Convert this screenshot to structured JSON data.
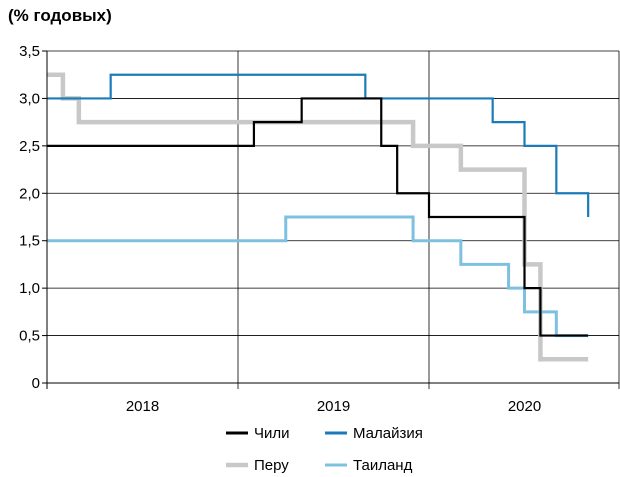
{
  "chart_data": {
    "type": "line",
    "step": true,
    "y_unit_label": "(% годовых)",
    "ylim": [
      0,
      3.5
    ],
    "y_ticks": [
      0,
      0.5,
      1.0,
      1.5,
      2.0,
      2.5,
      3.0,
      3.5
    ],
    "y_tick_labels": [
      "0",
      "0,5",
      "1,0",
      "1,5",
      "2,0",
      "2,5",
      "3,0",
      "3,5"
    ],
    "xlim": [
      "2017-09",
      "2020-09"
    ],
    "x_tick_labels": [
      "2018",
      "2019",
      "2020"
    ],
    "x_boundaries": [
      "2018-09",
      "2019-09"
    ],
    "grid": true,
    "legend_position": "bottom",
    "series": [
      {
        "name": "Чили",
        "color": "#000000",
        "points": [
          [
            "2017-09",
            2.5
          ],
          [
            "2018-10",
            2.75
          ],
          [
            "2019-01",
            3.0
          ],
          [
            "2019-06",
            2.5
          ],
          [
            "2019-07",
            2.0
          ],
          [
            "2019-09",
            1.75
          ],
          [
            "2020-03",
            1.0
          ],
          [
            "2020-04",
            0.5
          ],
          [
            "2020-07",
            0.5
          ]
        ]
      },
      {
        "name": "Перу",
        "color": "#c8c8c8",
        "points": [
          [
            "2017-09",
            3.25
          ],
          [
            "2017-10",
            3.0
          ],
          [
            "2017-11",
            2.75
          ],
          [
            "2019-08",
            2.5
          ],
          [
            "2019-11",
            2.25
          ],
          [
            "2020-03",
            1.25
          ],
          [
            "2020-04",
            0.25
          ],
          [
            "2020-07",
            0.25
          ]
        ]
      },
      {
        "name": "Малайзия",
        "color": "#1a7bb8",
        "points": [
          [
            "2017-09",
            3.0
          ],
          [
            "2018-01",
            3.25
          ],
          [
            "2019-05",
            3.0
          ],
          [
            "2020-01",
            2.75
          ],
          [
            "2020-03",
            2.5
          ],
          [
            "2020-05",
            2.0
          ],
          [
            "2020-07",
            1.75
          ]
        ]
      },
      {
        "name": "Таиланд",
        "color": "#7ec0e0",
        "points": [
          [
            "2017-09",
            1.5
          ],
          [
            "2018-12",
            1.75
          ],
          [
            "2019-08",
            1.5
          ],
          [
            "2019-11",
            1.25
          ],
          [
            "2020-02",
            1.0
          ],
          [
            "2020-03",
            0.75
          ],
          [
            "2020-05",
            0.5
          ],
          [
            "2020-07",
            0.5
          ]
        ]
      }
    ],
    "legend": [
      {
        "name": "Чили",
        "color": "#000000"
      },
      {
        "name": "Малайзия",
        "color": "#1a7bb8"
      },
      {
        "name": "Перу",
        "color": "#c8c8c8"
      },
      {
        "name": "Таиланд",
        "color": "#7ec0e0"
      }
    ]
  }
}
